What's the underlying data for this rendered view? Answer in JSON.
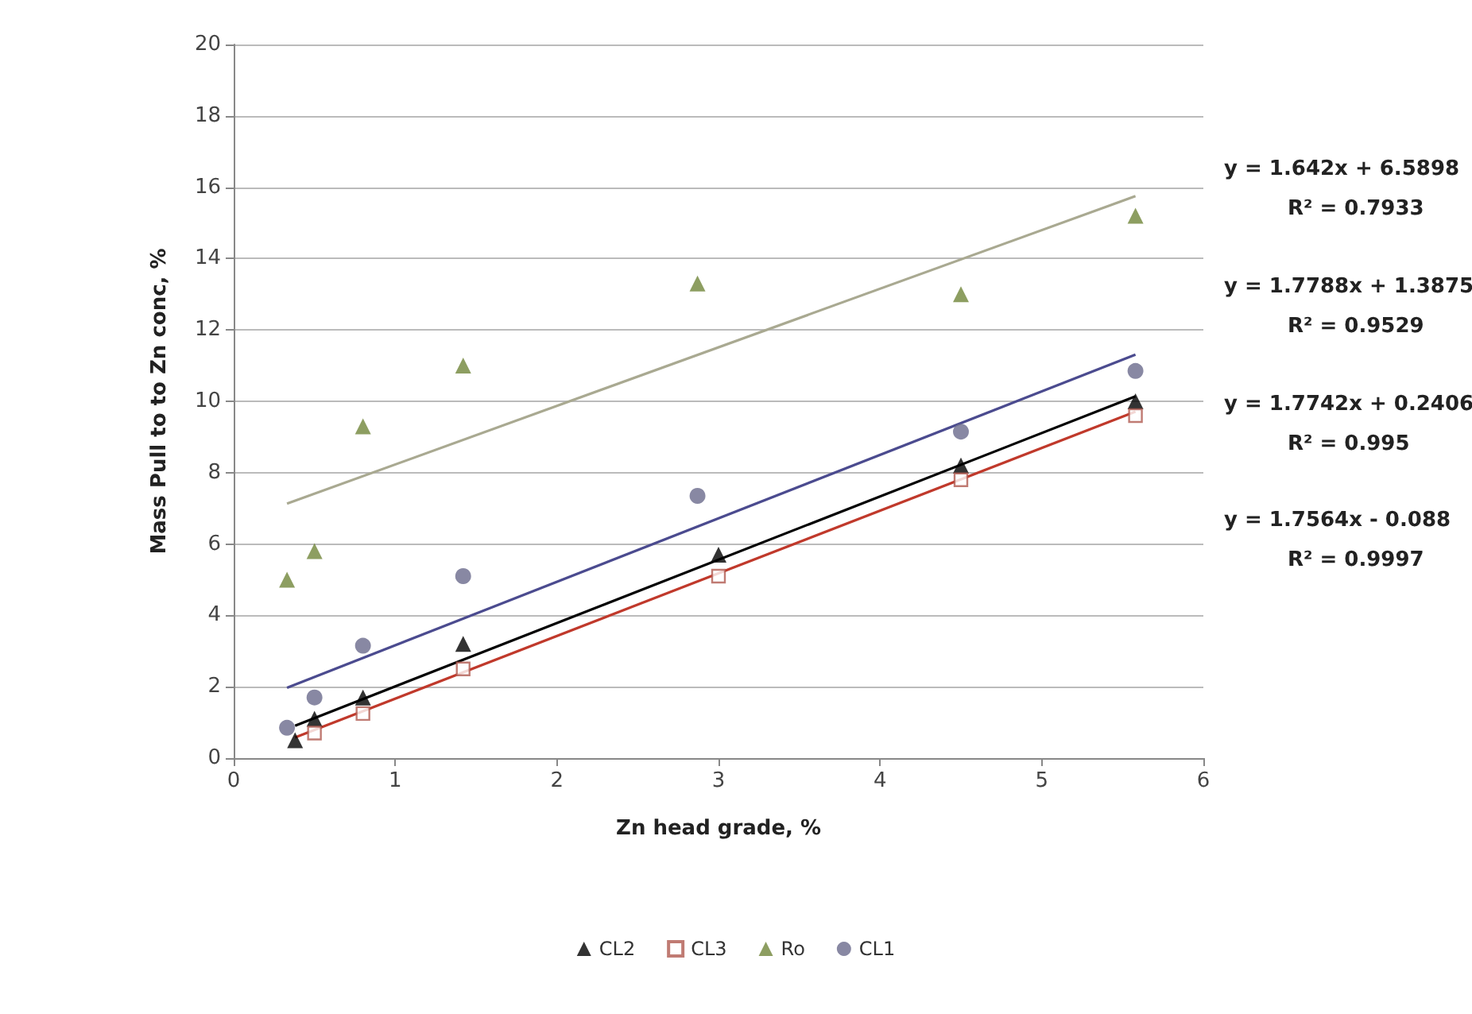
{
  "chart_data": {
    "type": "scatter",
    "xlabel": "Zn head grade, %",
    "ylabel": "Mass Pull to to Zn conc, %",
    "xlim": [
      0,
      6
    ],
    "xticks": [
      0,
      1,
      2,
      3,
      4,
      5,
      6
    ],
    "ylim": [
      0,
      20
    ],
    "yticks": [
      0,
      2,
      4,
      6,
      8,
      10,
      12,
      14,
      16,
      18,
      20
    ],
    "grid": "y",
    "legend": "bottom",
    "series": [
      {
        "name": "CL2",
        "color": "#000000",
        "marker": "triangle",
        "x": [
          0.38,
          0.5,
          0.8,
          1.42,
          3.0,
          4.5,
          5.58
        ],
        "values": [
          0.5,
          1.1,
          1.7,
          3.2,
          5.7,
          8.2,
          10.0
        ]
      },
      {
        "name": "CL3",
        "color": "#b05a50",
        "marker": "square",
        "x": [
          0.5,
          0.8,
          1.42,
          3.0,
          4.5,
          5.58
        ],
        "values": [
          0.7,
          1.25,
          2.5,
          5.1,
          7.8,
          9.6
        ]
      },
      {
        "name": "Ro",
        "color": "#71863a",
        "marker": "triangle",
        "x": [
          0.33,
          0.5,
          0.8,
          1.42,
          2.87,
          4.5,
          5.58
        ],
        "values": [
          5.0,
          5.8,
          9.3,
          11.0,
          13.3,
          13.0,
          15.2
        ]
      },
      {
        "name": "CL1",
        "color": "#6a6a8c",
        "marker": "circle",
        "x": [
          0.33,
          0.5,
          0.8,
          1.42,
          2.87,
          4.5,
          5.58
        ],
        "values": [
          0.85,
          1.7,
          3.15,
          5.1,
          7.35,
          9.15,
          10.85
        ]
      },
      {
        "type": "line",
        "color": "#a9a991",
        "marker": "none",
        "x": [
          0.33,
          5.58
        ],
        "values": [
          7.13,
          15.75
        ]
      },
      {
        "type": "line",
        "color": "#4b4b8f",
        "marker": "none",
        "x": [
          0.33,
          5.58
        ],
        "values": [
          1.97,
          11.31
        ]
      },
      {
        "type": "line",
        "color": "#000000",
        "marker": "none",
        "x": [
          0.38,
          5.58
        ],
        "values": [
          0.91,
          10.14
        ]
      },
      {
        "type": "line",
        "color": "#c0392b",
        "marker": "none",
        "x": [
          0.38,
          5.58
        ],
        "values": [
          0.58,
          9.71
        ]
      }
    ],
    "annotations": [
      "y = 1.642x + 6.5898",
      "R² = 0.7933",
      "y = 1.7788x + 1.3875",
      "R² = 0.9529",
      "y = 1.7742x + 0.2406",
      "R² = 0.995",
      "y = 1.7564x - 0.088",
      "R² = 0.9997"
    ]
  }
}
